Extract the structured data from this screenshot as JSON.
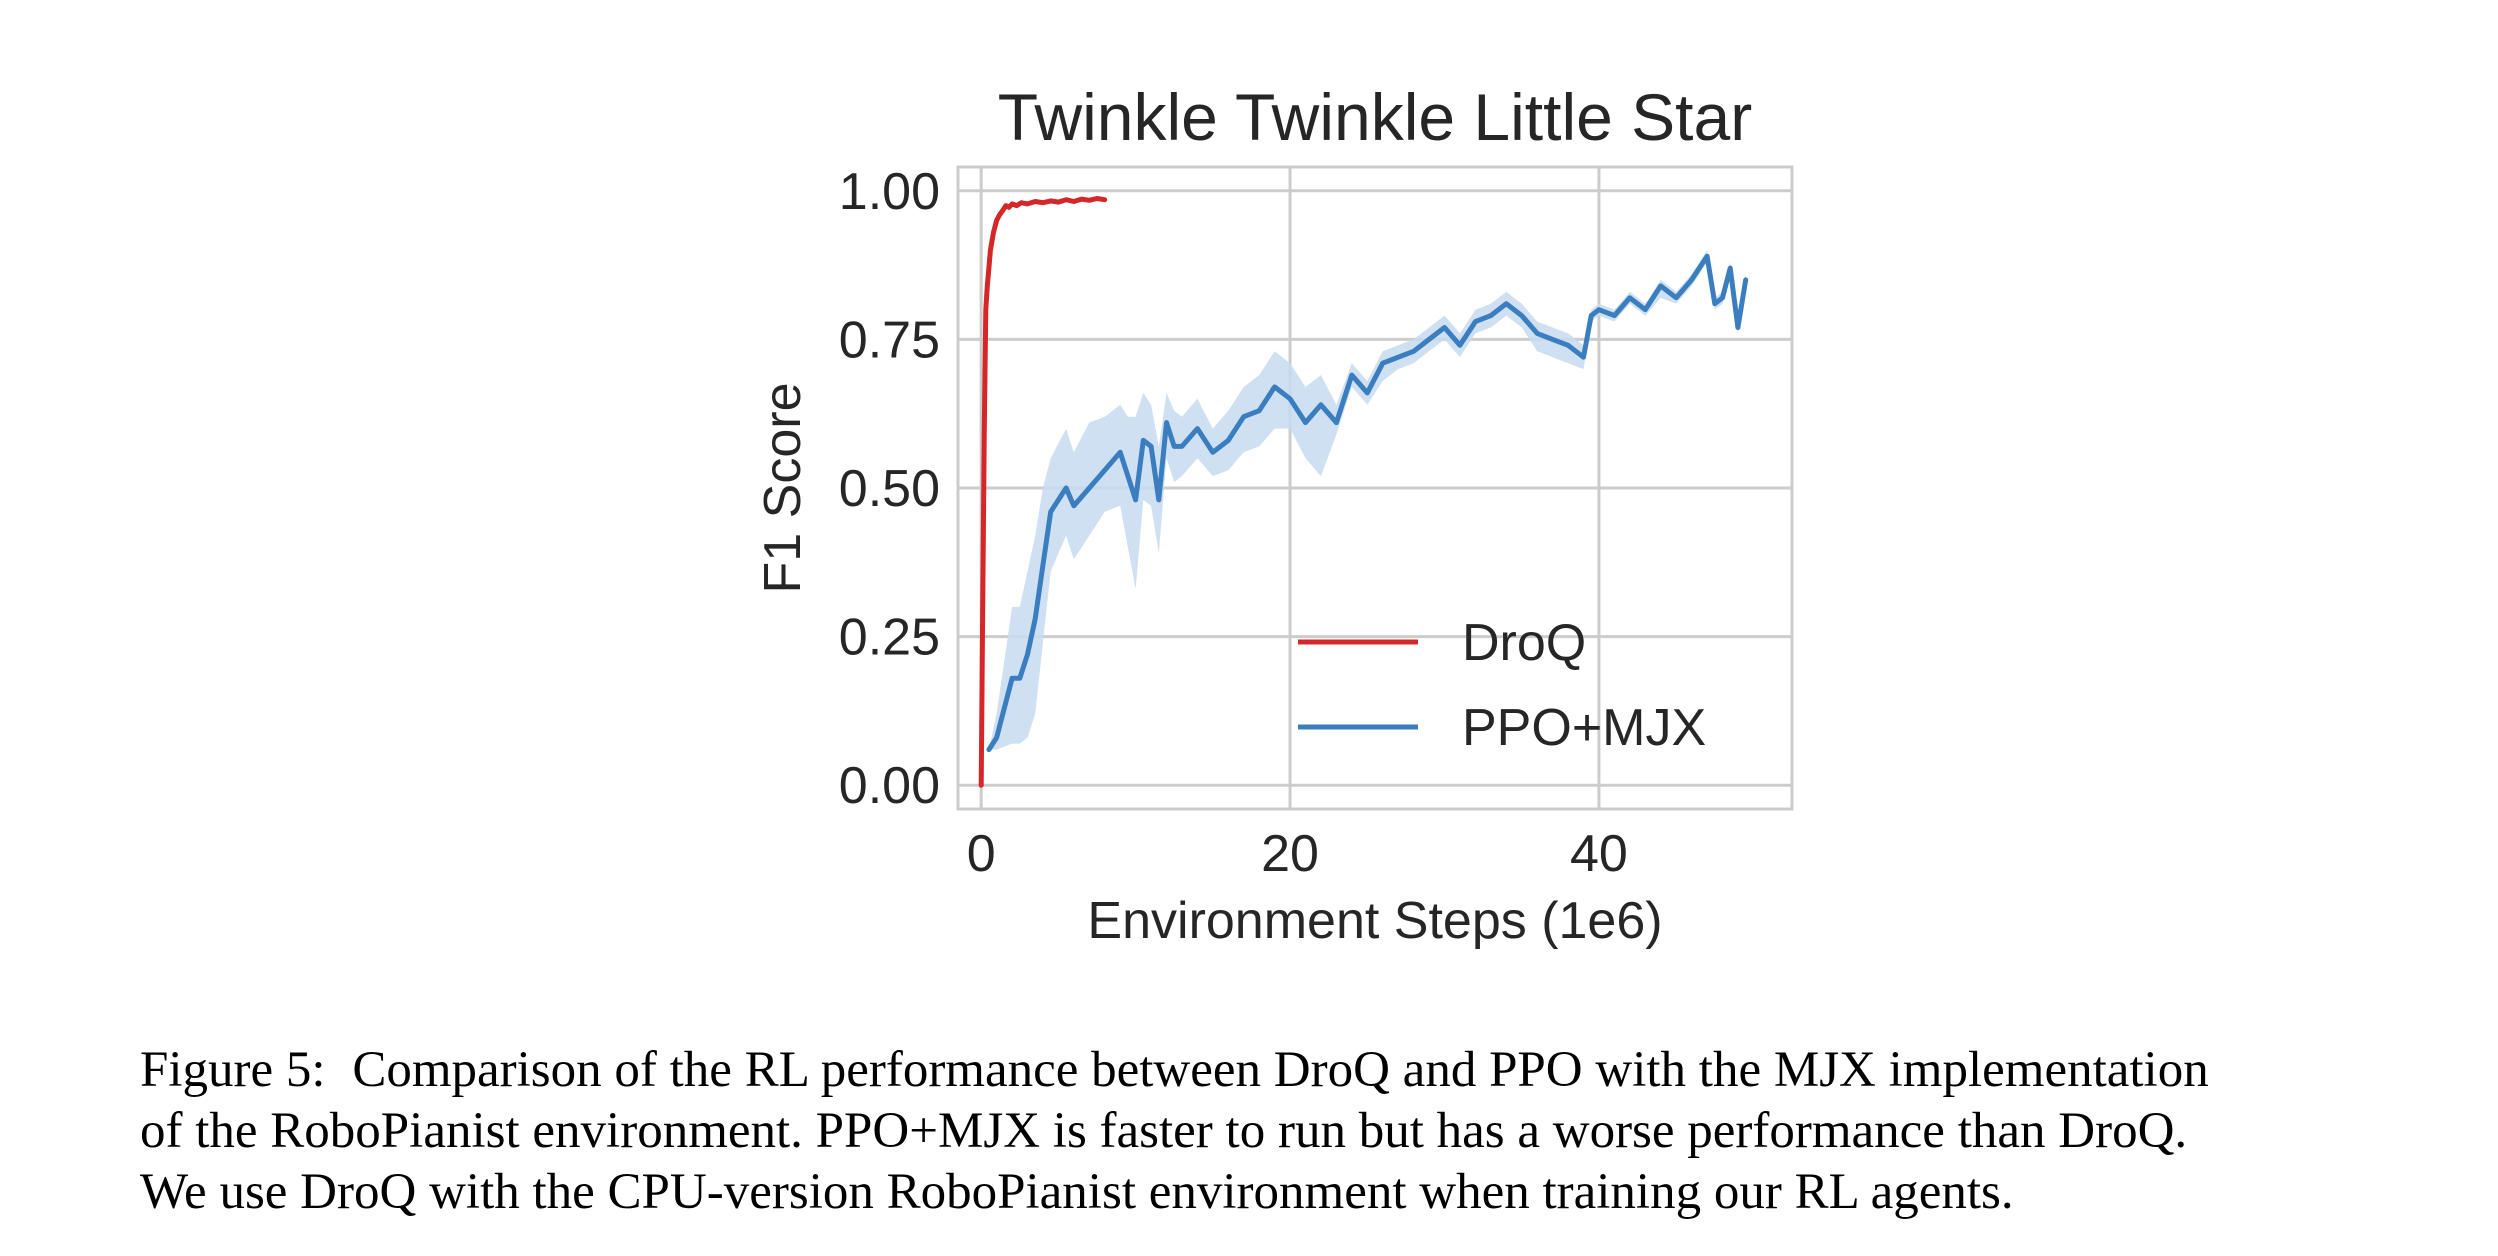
{
  "chart_data": {
    "type": "line",
    "title": "Twinkle Twinkle Little Star",
    "xlabel": "Environment Steps (1e6)",
    "ylabel": "F1 Score",
    "xlim": [
      -1.5,
      52.5
    ],
    "ylim": [
      -0.04,
      1.04
    ],
    "xticks": [
      0,
      20,
      40
    ],
    "xtick_labels": [
      "0",
      "20",
      "40"
    ],
    "yticks": [
      0,
      0.25,
      0.5,
      0.75,
      1.0
    ],
    "ytick_labels": [
      "0.00",
      "0.25",
      "0.50",
      "0.75",
      "1.00"
    ],
    "grid": true,
    "legend_position": "lower-right",
    "series": [
      {
        "name": "DroQ",
        "color": "#d62728",
        "x": [
          0.0,
          0.1,
          0.2,
          0.3,
          0.4,
          0.5,
          0.6,
          0.8,
          1.0,
          1.2,
          1.4,
          1.6,
          1.8,
          2.0,
          2.3,
          2.6,
          3.0,
          3.5,
          4.0,
          4.5,
          5.0,
          5.5,
          6.0,
          6.5,
          7.0,
          7.5,
          8.0
        ],
        "y": [
          0.0,
          0.3,
          0.6,
          0.8,
          0.84,
          0.87,
          0.9,
          0.93,
          0.95,
          0.96,
          0.967,
          0.975,
          0.972,
          0.978,
          0.975,
          0.98,
          0.978,
          0.982,
          0.98,
          0.983,
          0.981,
          0.985,
          0.982,
          0.986,
          0.984,
          0.987,
          0.985
        ]
      },
      {
        "name": "PPO+MJX",
        "color": "#3a7ebf",
        "band_color": "#c6dbef",
        "x": [
          0.5,
          1.0,
          2.0,
          2.5,
          3.0,
          3.5,
          4.0,
          4.5,
          5.5,
          6.0,
          7.0,
          8.0,
          9.0,
          9.5,
          10.0,
          10.5,
          11.0,
          11.5,
          12.0,
          12.5,
          13.0,
          14.0,
          15.0,
          16.0,
          17.0,
          18.0,
          19.0,
          20.0,
          21.0,
          22.0,
          23.0,
          24.0,
          25.0,
          26.0,
          27.0,
          28.0,
          29.0,
          30.0,
          31.0,
          32.0,
          33.0,
          34.0,
          35.0,
          36.0,
          37.0,
          38.0,
          39.0,
          39.5,
          40.0,
          41.0,
          42.0,
          43.0,
          44.0,
          45.0,
          46.0,
          47.0,
          47.5,
          48.0,
          48.5,
          49.0,
          49.5
        ],
        "y": [
          0.06,
          0.08,
          0.18,
          0.18,
          0.22,
          0.28,
          0.37,
          0.46,
          0.5,
          0.47,
          0.5,
          0.53,
          0.56,
          0.52,
          0.48,
          0.58,
          0.57,
          0.48,
          0.61,
          0.57,
          0.57,
          0.6,
          0.56,
          0.58,
          0.62,
          0.63,
          0.67,
          0.65,
          0.61,
          0.64,
          0.61,
          0.69,
          0.66,
          0.71,
          0.72,
          0.73,
          0.75,
          0.77,
          0.74,
          0.78,
          0.79,
          0.81,
          0.79,
          0.76,
          0.75,
          0.74,
          0.72,
          0.79,
          0.8,
          0.79,
          0.82,
          0.8,
          0.84,
          0.82,
          0.85,
          0.89,
          0.81,
          0.82,
          0.87,
          0.77,
          0.85
        ],
        "band_lower": [
          0.06,
          0.06,
          0.07,
          0.07,
          0.08,
          0.12,
          0.24,
          0.36,
          0.42,
          0.38,
          0.42,
          0.46,
          0.47,
          0.4,
          0.33,
          0.48,
          0.47,
          0.39,
          0.55,
          0.51,
          0.52,
          0.55,
          0.52,
          0.53,
          0.56,
          0.57,
          0.6,
          0.6,
          0.55,
          0.52,
          0.59,
          0.67,
          0.64,
          0.68,
          0.7,
          0.71,
          0.73,
          0.75,
          0.72,
          0.76,
          0.77,
          0.79,
          0.77,
          0.73,
          0.72,
          0.71,
          0.7,
          0.78,
          0.79,
          0.78,
          0.81,
          0.79,
          0.82,
          0.81,
          0.84,
          0.88,
          0.8,
          0.81,
          0.86,
          0.76,
          0.84
        ],
        "band_upper": [
          0.06,
          0.12,
          0.3,
          0.3,
          0.36,
          0.42,
          0.5,
          0.55,
          0.6,
          0.56,
          0.61,
          0.62,
          0.64,
          0.62,
          0.62,
          0.66,
          0.64,
          0.57,
          0.66,
          0.63,
          0.62,
          0.65,
          0.6,
          0.63,
          0.67,
          0.69,
          0.73,
          0.71,
          0.67,
          0.69,
          0.64,
          0.71,
          0.68,
          0.73,
          0.74,
          0.75,
          0.77,
          0.79,
          0.76,
          0.8,
          0.81,
          0.83,
          0.81,
          0.78,
          0.77,
          0.76,
          0.74,
          0.8,
          0.81,
          0.8,
          0.83,
          0.81,
          0.85,
          0.83,
          0.86,
          0.9,
          0.82,
          0.83,
          0.88,
          0.78,
          0.86
        ]
      }
    ]
  },
  "caption": {
    "label": "Figure 5:",
    "line1": "Comparison of the RL performance between DroQ and PPO with the MJX implementation",
    "line2": "of the RoboPianist environment. PPO+MJX is faster to run but has a worse performance than DroQ.",
    "line3": "We use DroQ with the CPU-version RoboPianist environment when training our RL agents."
  }
}
